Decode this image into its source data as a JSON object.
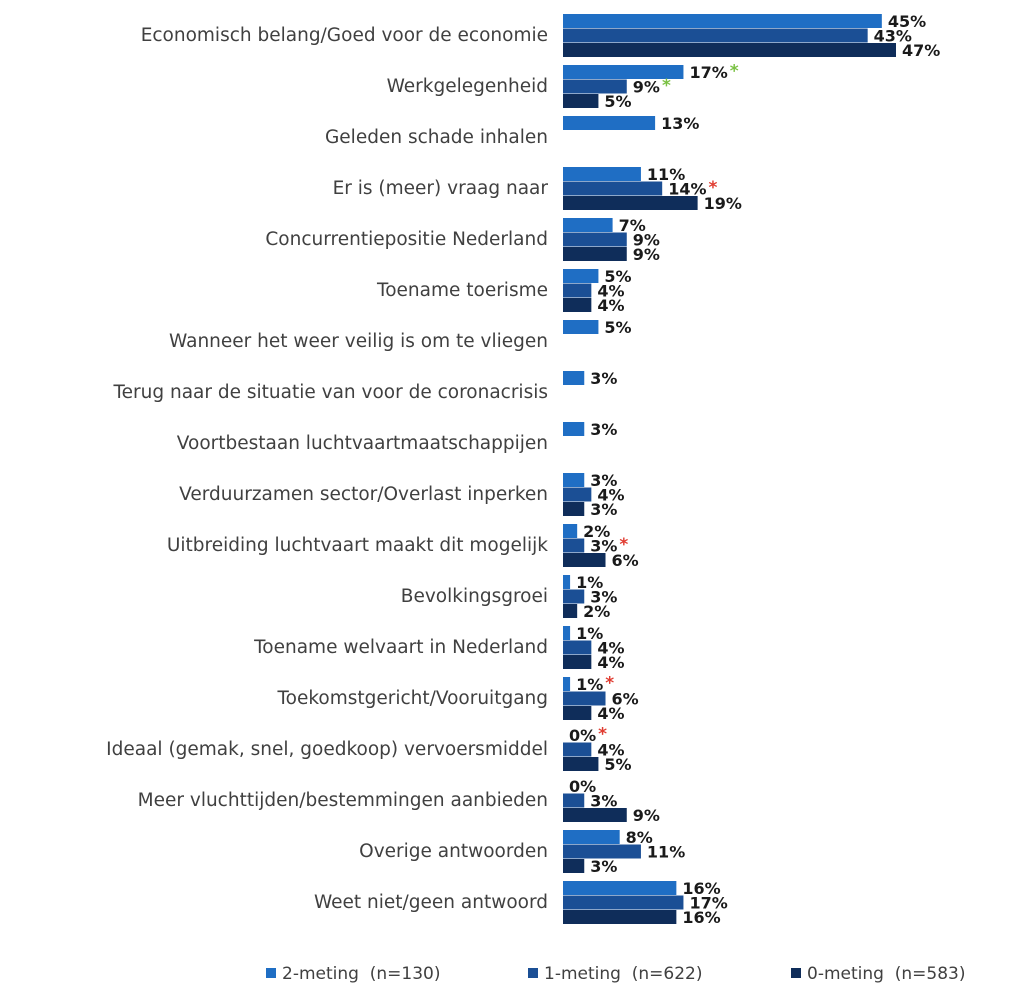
{
  "chart_data": {
    "type": "bar",
    "orientation": "horizontal",
    "categories": [
      "Economisch belang/Goed voor de economie",
      "Werkgelegenheid",
      "Geleden schade inhalen",
      "Er is (meer) vraag naar",
      "Concurrentiepositie Nederland",
      "Toename toerisme",
      "Wanneer het weer veilig is om te vliegen",
      "Terug naar de situatie van voor de coronacrisis",
      "Voortbestaan luchtvaartmaatschappijen",
      "Verduurzamen sector/Overlast inperken",
      "Uitbreiding luchtvaart maakt dit mogelijk",
      "Bevolkingsgroei",
      "Toename welvaart in Nederland",
      "Toekomstgericht/Vooruitgang",
      "Ideaal (gemak, snel, goedkoop) vervoersmiddel",
      "Meer vluchttijden/bestemmingen aanbieden",
      "Overige antwoorden",
      "Weet niet/geen antwoord"
    ],
    "series": [
      {
        "name": "2-meting  (n=130)",
        "color": "#1f6ec4",
        "values": [
          45,
          17,
          13,
          11,
          7,
          5,
          5,
          3,
          3,
          3,
          2,
          1,
          1,
          1,
          0,
          0,
          8,
          16
        ],
        "value_labels": [
          "45%",
          "17%",
          "13%",
          "11%",
          "7%",
          "5%",
          "5%",
          "3%",
          "3%",
          "3%",
          "2%",
          "1%",
          "1%",
          "1%",
          "0%",
          "0%",
          "8%",
          "16%"
        ]
      },
      {
        "name": "1-meting  (n=622)",
        "color": "#1b4f95",
        "values": [
          43,
          9,
          null,
          14,
          9,
          4,
          null,
          null,
          null,
          4,
          3,
          3,
          4,
          6,
          4,
          3,
          11,
          17
        ],
        "value_labels": [
          "43%",
          "9%",
          null,
          "14%",
          "9%",
          "4%",
          null,
          null,
          null,
          "4%",
          "3%",
          "3%",
          "4%",
          "6%",
          "4%",
          "3%",
          "11%",
          "17%"
        ]
      },
      {
        "name": "0-meting  (n=583)",
        "color": "#0f2d5a",
        "values": [
          47,
          5,
          null,
          19,
          9,
          4,
          null,
          null,
          null,
          3,
          6,
          2,
          4,
          4,
          5,
          9,
          3,
          16
        ],
        "value_labels": [
          "47%",
          "5%",
          null,
          "19%",
          "9%",
          "4%",
          null,
          null,
          null,
          "3%",
          "6%",
          "2%",
          "4%",
          "4%",
          "5%",
          "9%",
          "3%",
          "16%"
        ]
      }
    ],
    "annotations": [
      {
        "text": "*",
        "color": "#7ac143",
        "series": 0,
        "category": 1
      },
      {
        "text": "*",
        "color": "#7ac143",
        "series": 1,
        "category": 1
      },
      {
        "text": "*",
        "color": "#e03c31",
        "series": 1,
        "category": 3
      },
      {
        "text": "*",
        "color": "#e03c31",
        "series": 1,
        "category": 10
      },
      {
        "text": "*",
        "color": "#e03c31",
        "series": 0,
        "category": 13
      },
      {
        "text": "*",
        "color": "#e03c31",
        "series": 0,
        "category": 14
      }
    ],
    "legend": "bottom"
  }
}
